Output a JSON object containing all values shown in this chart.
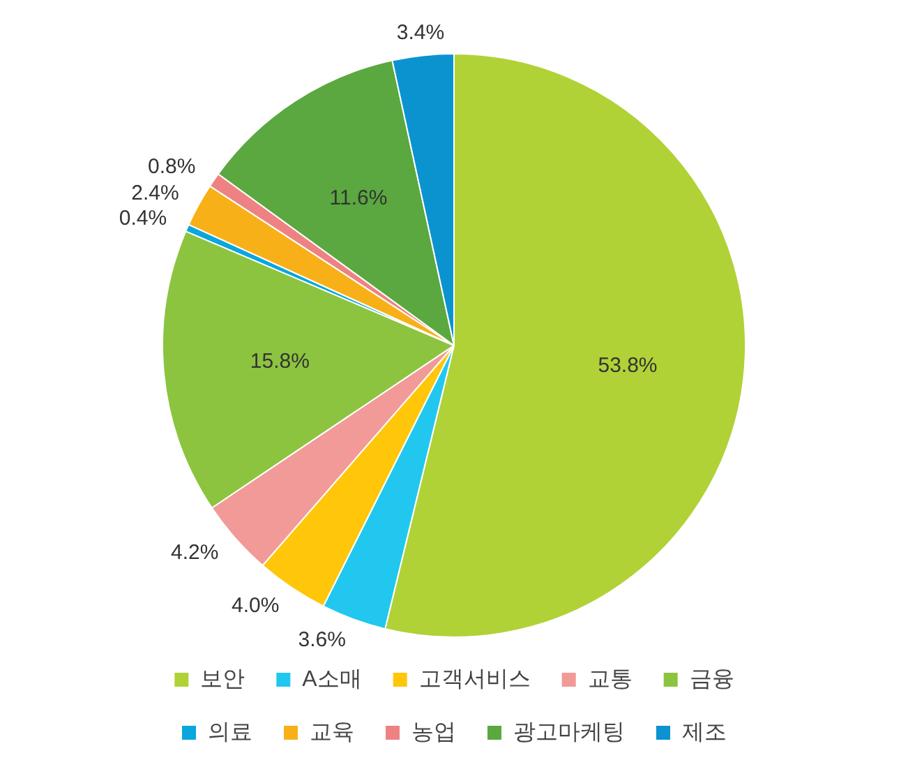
{
  "chart_data": {
    "type": "pie",
    "categories": [
      "보안",
      "A소매",
      "고객서비스",
      "교통",
      "금융",
      "의료",
      "교육",
      "농업",
      "광고마케팅",
      "제조"
    ],
    "values": [
      53.8,
      3.6,
      4.0,
      4.2,
      15.8,
      0.4,
      2.4,
      0.8,
      11.6,
      3.4
    ],
    "colors": [
      "#b0d236",
      "#22c7ef",
      "#ffc60a",
      "#f19a98",
      "#8cc43f",
      "#0aa6de",
      "#f8b018",
      "#ee8282",
      "#5aa83f",
      "#0b93d0"
    ],
    "value_labels": [
      "53.8%",
      "3.6%",
      "4.0%",
      "4.2%",
      "15.8%",
      "0.4%",
      "2.4%",
      "0.8%",
      "11.6%",
      "3.4%"
    ],
    "legend": "bottom"
  }
}
